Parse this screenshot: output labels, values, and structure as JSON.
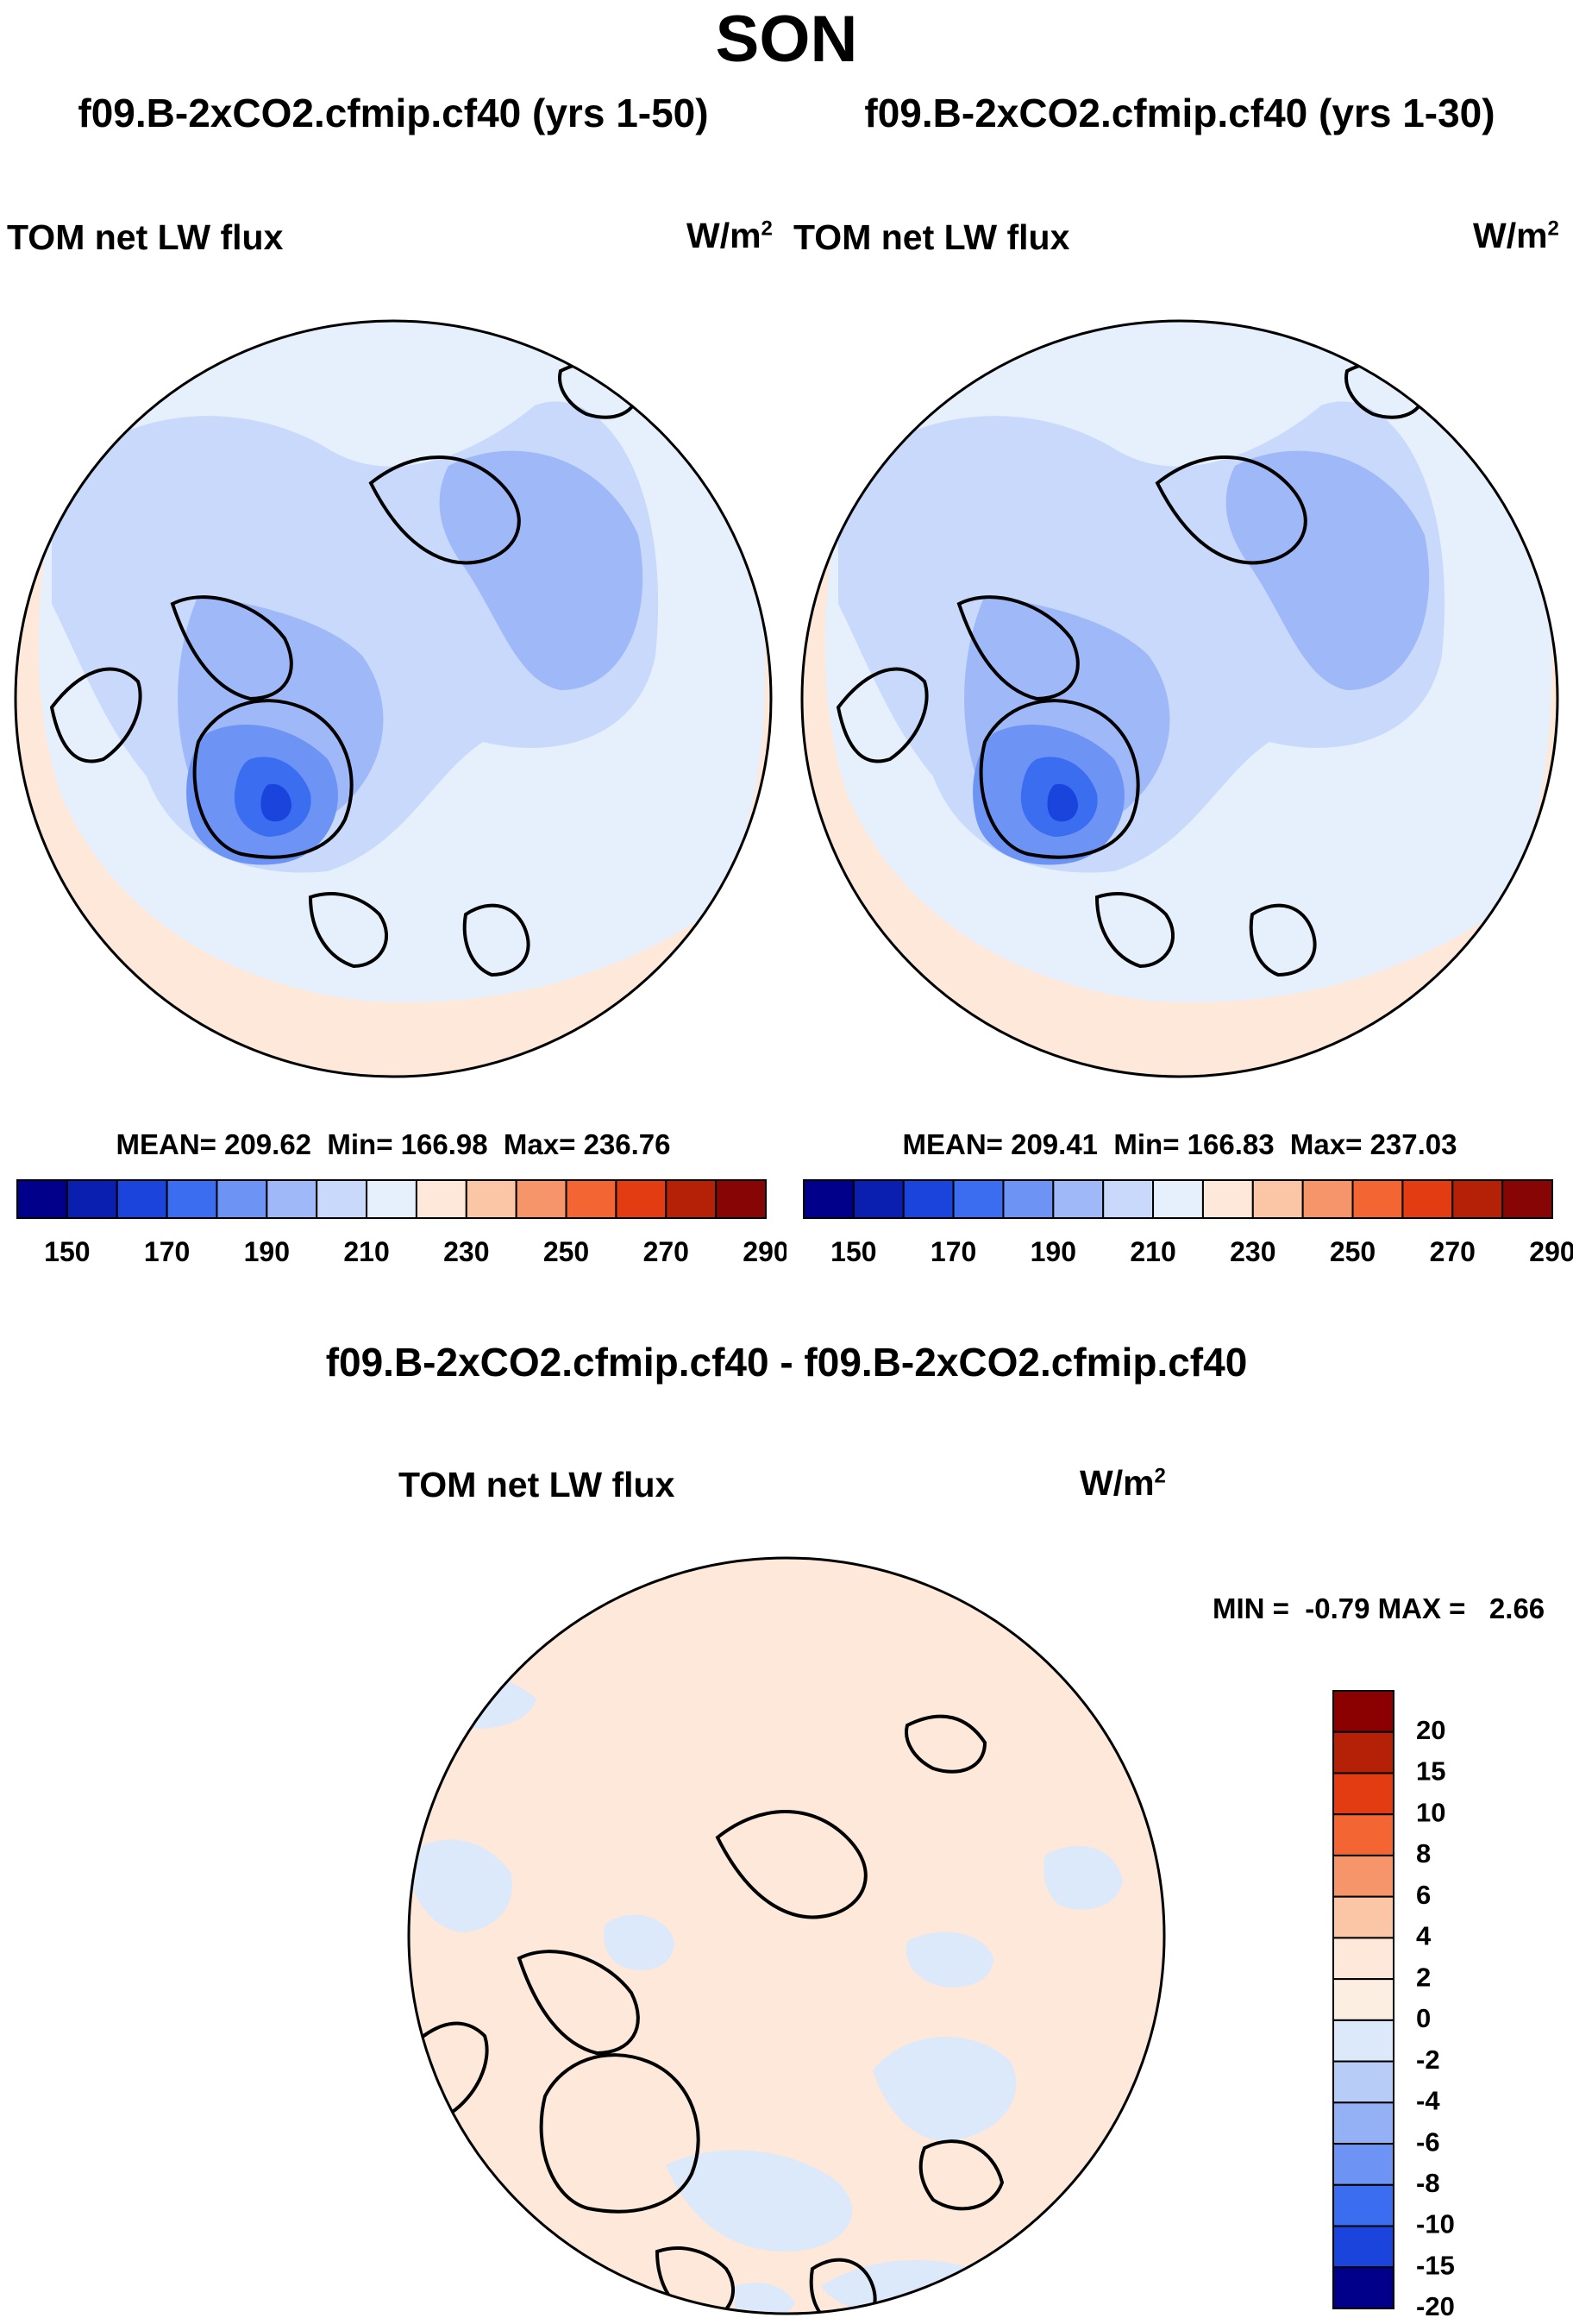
{
  "figure": {
    "season": "SON",
    "panels": [
      {
        "case_title": "f09.B-2xCO2.cfmip.cf40 (yrs 1-50)",
        "variable": "TOM net LW flux",
        "units": "W/m",
        "units_sup": "2",
        "stats": {
          "mean_label": "MEAN=",
          "mean": "209.62",
          "min_label": "Min=",
          "min": "166.98",
          "max_label": "Max=",
          "max": "236.76"
        }
      },
      {
        "case_title": "f09.B-2xCO2.cfmip.cf40 (yrs 1-30)",
        "variable": "TOM net LW flux",
        "units": "W/m",
        "units_sup": "2",
        "stats": {
          "mean_label": "MEAN=",
          "mean": "209.41",
          "min_label": "Min=",
          "min": "166.83",
          "max_label": "Max=",
          "max": "237.03"
        }
      }
    ],
    "diff_panel": {
      "title": "f09.B-2xCO2.cfmip.cf40 - f09.B-2xCO2.cfmip.cf40",
      "variable": "TOM net LW flux",
      "units": "W/m",
      "units_sup": "2",
      "minmax_text": "MIN =  -0.79 MAX =   2.66"
    }
  },
  "chart_data": [
    {
      "type": "heatmap",
      "projection": "north polar stereographic",
      "title": "TOM net LW flux",
      "case": "f09.B-2xCO2.cfmip.cf40 (yrs 1-50)",
      "units": "W/m2",
      "mean": 209.62,
      "min": 166.98,
      "max": 236.76,
      "colorbar_ticks": [
        "150",
        "170",
        "190",
        "210",
        "230",
        "250",
        "270",
        "290"
      ],
      "colorbar_colors": [
        "#00008b",
        "#0a1fb0",
        "#1a44dc",
        "#3a6df0",
        "#6d94f4",
        "#9fb8f8",
        "#c8d9fb",
        "#e6f0fd",
        "#fde8d9",
        "#fbc6a6",
        "#f7956a",
        "#f46534",
        "#e33c12",
        "#b52107",
        "#870505"
      ]
    },
    {
      "type": "heatmap",
      "projection": "north polar stereographic",
      "title": "TOM net LW flux",
      "case": "f09.B-2xCO2.cfmip.cf40 (yrs 1-30)",
      "units": "W/m2",
      "mean": 209.41,
      "min": 166.83,
      "max": 237.03,
      "colorbar_ticks": [
        "150",
        "170",
        "190",
        "210",
        "230",
        "250",
        "270",
        "290"
      ],
      "colorbar_colors": [
        "#00008b",
        "#0a1fb0",
        "#1a44dc",
        "#3a6df0",
        "#6d94f4",
        "#9fb8f8",
        "#c8d9fb",
        "#e6f0fd",
        "#fde8d9",
        "#fbc6a6",
        "#f7956a",
        "#f46534",
        "#e33c12",
        "#b52107",
        "#870505"
      ]
    },
    {
      "type": "heatmap",
      "projection": "north polar stereographic",
      "title": "TOM net LW flux",
      "case": "f09.B-2xCO2.cfmip.cf40 - f09.B-2xCO2.cfmip.cf40",
      "units": "W/m2",
      "min": -0.79,
      "max": 2.66,
      "colorbar_labels_top_to_bottom": [
        "20",
        "15",
        "10",
        "8",
        "6",
        "4",
        "2",
        "0",
        "-2",
        "-4",
        "-6",
        "-8",
        "-10",
        "-15",
        "-20"
      ],
      "colorbar_colors_top_to_bottom": [
        "#8b0000",
        "#b52107",
        "#e33c12",
        "#f46534",
        "#f7956a",
        "#fbc6a6",
        "#fde8d9",
        "#fdeee2",
        "#dbe9fb",
        "#b7cdf7",
        "#93b1f4",
        "#6d94f4",
        "#3a6df0",
        "#1a44dc",
        "#00008b"
      ]
    }
  ]
}
